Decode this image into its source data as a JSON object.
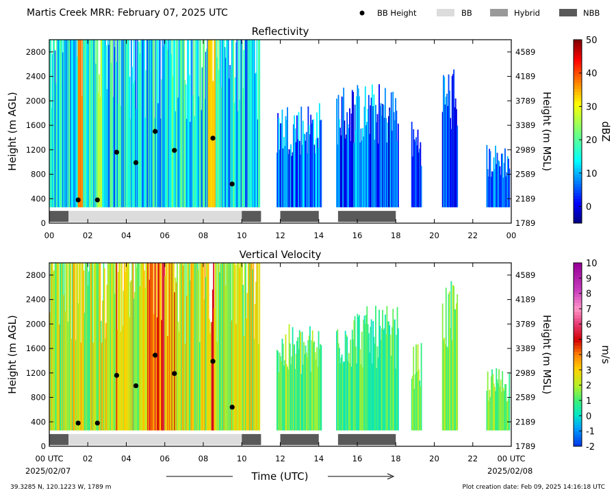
{
  "header": {
    "title": "Martis Creek MRR:  February 07, 2025 UTC",
    "legend": [
      {
        "label": "BB Height",
        "kind": "dot",
        "color": "#000000"
      },
      {
        "label": "BB",
        "kind": "box",
        "color": "#dcdcdc"
      },
      {
        "label": "Hybrid",
        "kind": "box",
        "color": "#999999"
      },
      {
        "label": "NBB",
        "kind": "box",
        "color": "#595959"
      }
    ]
  },
  "footer": {
    "location": "39.3285 N, 120.1223 W, 1789 m",
    "created": "Plot creation date: Feb 09, 2025 14:16:18 UTC",
    "xlabel": "Time (UTC)",
    "date_start": "2025/02/07",
    "date_end": "2025/02/08"
  },
  "chart_data": [
    {
      "type": "heatmap",
      "title": "Reflectivity",
      "ylabel": "Height (m AGL)",
      "ylabel_right": "Height (m MSL)",
      "xlim": [
        0,
        24
      ],
      "ylim": [
        0,
        3000
      ],
      "x_ticks": [
        "00",
        "02",
        "04",
        "06",
        "08",
        "10",
        "12",
        "14",
        "16",
        "18",
        "20",
        "22",
        "00"
      ],
      "y_ticks": [
        "0",
        "400",
        "800",
        "1200",
        "1600",
        "2000",
        "2400",
        "2800"
      ],
      "y_ticks_right": [
        "1789",
        "2189",
        "2589",
        "2989",
        "3389",
        "3789",
        "4189",
        "4589"
      ],
      "colorbar": {
        "label": "dBZ",
        "range": [
          -5,
          50
        ],
        "ticks": [
          "0",
          "10",
          "20",
          "30",
          "40",
          "50"
        ],
        "colormap": "jet"
      },
      "bb_height_points": [
        {
          "x": 1.5,
          "y": 380
        },
        {
          "x": 2.5,
          "y": 380
        },
        {
          "x": 3.5,
          "y": 1160
        },
        {
          "x": 4.5,
          "y": 990
        },
        {
          "x": 5.5,
          "y": 1500
        },
        {
          "x": 6.5,
          "y": 1190
        },
        {
          "x": 8.5,
          "y": 1390
        },
        {
          "x": 9.5,
          "y": 640
        }
      ],
      "bb_segments": [
        {
          "start": 0,
          "end": 1,
          "kind": "NBB"
        },
        {
          "start": 1,
          "end": 10,
          "kind": "BB"
        },
        {
          "start": 10,
          "end": 11,
          "kind": "NBB"
        },
        {
          "start": 12,
          "end": 14,
          "kind": "NBB"
        },
        {
          "start": 15,
          "end": 18,
          "kind": "NBB"
        }
      ],
      "echo_bands": [
        {
          "start": 0,
          "end": 10.9,
          "top": 3000,
          "intensity": 14,
          "spread": 10
        },
        {
          "start": 11.8,
          "end": 14.1,
          "top": 2000,
          "intensity": 7,
          "spread": 8
        },
        {
          "start": 14.9,
          "end": 18.1,
          "top": 2300,
          "intensity": 6,
          "spread": 8
        },
        {
          "start": 18.8,
          "end": 19.3,
          "top": 1700,
          "intensity": 3,
          "spread": 5
        },
        {
          "start": 20.4,
          "end": 21.2,
          "top": 2600,
          "intensity": 5,
          "spread": 6
        },
        {
          "start": 22.7,
          "end": 23.9,
          "top": 1300,
          "intensity": 5,
          "spread": 6
        }
      ],
      "hot_columns": [
        {
          "x": 1.6,
          "width": 0.15,
          "value": 38
        },
        {
          "x": 8.4,
          "width": 0.2,
          "value": 35
        },
        {
          "x": 2.6,
          "width": 0.12,
          "value": 28
        }
      ]
    },
    {
      "type": "heatmap",
      "title": "Vertical Velocity",
      "ylabel": "Height (m AGL)",
      "ylabel_right": "Height (m MSL)",
      "xlim": [
        0,
        24
      ],
      "ylim": [
        0,
        3000
      ],
      "x_ticks": [
        "00 UTC",
        "02",
        "04",
        "06",
        "08",
        "10",
        "12",
        "14",
        "16",
        "18",
        "20",
        "22",
        "00 UTC"
      ],
      "y_ticks": [
        "0",
        "400",
        "800",
        "1200",
        "1600",
        "2000",
        "2400",
        "2800"
      ],
      "y_ticks_right": [
        "1789",
        "2189",
        "2589",
        "2989",
        "3389",
        "3789",
        "4189",
        "4589"
      ],
      "colorbar": {
        "label": "m/s",
        "range": [
          -2,
          10
        ],
        "ticks": [
          "-2",
          "-1",
          "0",
          "1",
          "2",
          "3",
          "4",
          "5",
          "6",
          "7",
          "8",
          "9",
          "10"
        ],
        "colormap": "velocity"
      },
      "bb_height_points": [
        {
          "x": 1.5,
          "y": 380
        },
        {
          "x": 2.5,
          "y": 380
        },
        {
          "x": 3.5,
          "y": 1160
        },
        {
          "x": 4.5,
          "y": 990
        },
        {
          "x": 5.5,
          "y": 1490
        },
        {
          "x": 6.5,
          "y": 1190
        },
        {
          "x": 8.5,
          "y": 1390
        },
        {
          "x": 9.5,
          "y": 640
        }
      ],
      "bb_segments": [
        {
          "start": 0,
          "end": 1,
          "kind": "NBB"
        },
        {
          "start": 1,
          "end": 10,
          "kind": "BB"
        },
        {
          "start": 10,
          "end": 11,
          "kind": "NBB"
        },
        {
          "start": 12,
          "end": 14,
          "kind": "NBB"
        },
        {
          "start": 15,
          "end": 18,
          "kind": "NBB"
        }
      ],
      "echo_bands": [
        {
          "start": 0,
          "end": 10.9,
          "top": 3000,
          "intensity": 2.2,
          "spread": 1.6
        },
        {
          "start": 11.8,
          "end": 14.1,
          "top": 2000,
          "intensity": 1.3,
          "spread": 1.0
        },
        {
          "start": 14.9,
          "end": 18.1,
          "top": 2300,
          "intensity": 0.9,
          "spread": 1.0
        },
        {
          "start": 18.8,
          "end": 19.3,
          "top": 1700,
          "intensity": 1.5,
          "spread": 0.8
        },
        {
          "start": 20.4,
          "end": 21.2,
          "top": 2700,
          "intensity": 1.5,
          "spread": 1.0
        },
        {
          "start": 22.7,
          "end": 23.9,
          "top": 1300,
          "intensity": 1.4,
          "spread": 0.8
        }
      ],
      "hot_columns": [
        {
          "x": 3.6,
          "width": 0.2,
          "value": 5
        },
        {
          "x": 5.6,
          "width": 0.35,
          "value": 6
        },
        {
          "x": 5.2,
          "width": 0.15,
          "value": 5.5
        },
        {
          "x": 6.3,
          "width": 0.2,
          "value": 5
        },
        {
          "x": 8.5,
          "width": 0.1,
          "value": 5.5
        }
      ]
    }
  ]
}
